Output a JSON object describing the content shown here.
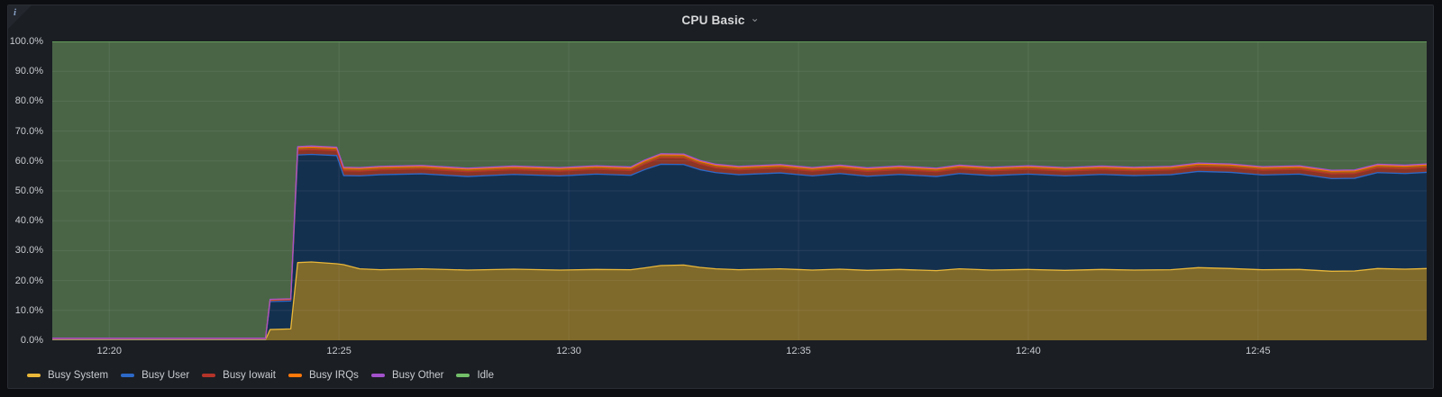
{
  "panel": {
    "title": "CPU Basic"
  },
  "icons": {
    "chevron_down_icon": "⌄",
    "info_icon": "i"
  },
  "colors": {
    "panel_bg": "#1b1e23",
    "page_bg": "#0d0e12",
    "grid": "rgba(255,255,255,0.07)",
    "tick_text": "#c8ccd1"
  },
  "chart_data": {
    "type": "area",
    "stacked": true,
    "title": "CPU Basic",
    "xlabel": "",
    "ylabel": "",
    "ylim": [
      0,
      100
    ],
    "grid": true,
    "legend_position": "bottom",
    "x_range_minutes": [
      18.76,
      48.67
    ],
    "y_ticks": [
      {
        "value": 100,
        "label": "100.0%"
      },
      {
        "value": 90,
        "label": "90.0%"
      },
      {
        "value": 80,
        "label": "80.0%"
      },
      {
        "value": 70,
        "label": "70.0%"
      },
      {
        "value": 60,
        "label": "60.0%"
      },
      {
        "value": 50,
        "label": "50.0%"
      },
      {
        "value": 40,
        "label": "40.0%"
      },
      {
        "value": 30,
        "label": "30.0%"
      },
      {
        "value": 20,
        "label": "20.0%"
      },
      {
        "value": 10,
        "label": "10.0%"
      },
      {
        "value": 0,
        "label": "0.0%"
      }
    ],
    "x_ticks": [
      {
        "minute": 20,
        "label": "12:20"
      },
      {
        "minute": 25,
        "label": "12:25"
      },
      {
        "minute": 30,
        "label": "12:30"
      },
      {
        "minute": 35,
        "label": "12:35"
      },
      {
        "minute": 40,
        "label": "12:40"
      },
      {
        "minute": 45,
        "label": "12:45"
      }
    ],
    "x_minutes": [
      18.76,
      23.4,
      23.5,
      23.95,
      24.1,
      24.4,
      24.95,
      25.1,
      25.45,
      25.9,
      26.8,
      27.8,
      28.8,
      29.8,
      30.6,
      31.35,
      31.65,
      32.0,
      32.5,
      32.85,
      33.2,
      33.7,
      34.6,
      35.3,
      35.9,
      36.5,
      37.2,
      38.0,
      38.5,
      39.2,
      40.0,
      40.8,
      41.6,
      42.3,
      43.1,
      43.7,
      44.4,
      45.1,
      45.9,
      46.6,
      47.1,
      47.6,
      48.2,
      48.67
    ],
    "series": [
      {
        "name": "Busy System",
        "line": "#EAB839",
        "fill": "#7f692b",
        "values": [
          0.2,
          0.2,
          3.6,
          3.8,
          26.0,
          26.2,
          25.6,
          25.3,
          23.9,
          23.6,
          23.9,
          23.5,
          23.8,
          23.5,
          23.7,
          23.6,
          24.2,
          25.0,
          25.2,
          24.4,
          23.9,
          23.6,
          23.9,
          23.5,
          23.8,
          23.4,
          23.7,
          23.3,
          23.9,
          23.5,
          23.7,
          23.4,
          23.7,
          23.5,
          23.6,
          24.3,
          24.0,
          23.6,
          23.7,
          23.1,
          23.2,
          24.0,
          23.8,
          24.0
        ]
      },
      {
        "name": "Busy User",
        "line": "#2d69c8",
        "fill": "#14304f",
        "values": [
          0.2,
          0.2,
          9.35,
          9.35,
          36.0,
          36.0,
          36.2,
          29.8,
          31.1,
          31.8,
          31.8,
          31.3,
          31.7,
          31.5,
          31.9,
          31.6,
          32.9,
          33.9,
          33.6,
          32.7,
          32.2,
          31.8,
          32.1,
          31.5,
          32.0,
          31.5,
          31.8,
          31.5,
          31.9,
          31.6,
          31.9,
          31.6,
          31.8,
          31.6,
          31.8,
          32.2,
          32.2,
          31.7,
          31.9,
          31.0,
          31.0,
          32.1,
          32.0,
          32.2
        ]
      },
      {
        "name": "Busy Iowait",
        "line": "#b5342a",
        "fill": "#8a3526",
        "values": [
          0.15,
          0.15,
          0.4,
          0.4,
          1.6,
          1.6,
          1.6,
          1.6,
          1.6,
          1.6,
          1.6,
          1.6,
          1.6,
          1.6,
          1.6,
          1.6,
          1.9,
          2.2,
          2.2,
          1.9,
          1.6,
          1.6,
          1.6,
          1.6,
          1.6,
          1.6,
          1.6,
          1.6,
          1.6,
          1.6,
          1.6,
          1.6,
          1.6,
          1.6,
          1.6,
          1.6,
          1.6,
          1.6,
          1.6,
          1.6,
          1.6,
          1.6,
          1.6,
          1.6
        ]
      },
      {
        "name": "Busy IRQs",
        "line": "#FF780A",
        "fill": "#a85c14",
        "values": [
          0.1,
          0.1,
          0.25,
          0.25,
          0.9,
          0.9,
          0.9,
          0.9,
          0.9,
          0.9,
          0.9,
          0.9,
          0.9,
          0.9,
          0.9,
          0.9,
          1.0,
          1.0,
          1.0,
          0.9,
          0.9,
          0.9,
          0.9,
          0.9,
          0.9,
          0.9,
          0.9,
          0.9,
          0.9,
          0.9,
          0.9,
          0.9,
          0.9,
          0.9,
          0.9,
          0.9,
          0.9,
          0.9,
          0.9,
          0.9,
          0.9,
          0.9,
          0.9,
          0.9
        ]
      },
      {
        "name": "Busy Other",
        "line": "#A352CC",
        "fill": "#6f4391",
        "values": [
          0.05,
          0.05,
          0.1,
          0.1,
          0.3,
          0.3,
          0.3,
          0.3,
          0.3,
          0.3,
          0.3,
          0.3,
          0.3,
          0.3,
          0.3,
          0.3,
          0.3,
          0.3,
          0.3,
          0.3,
          0.3,
          0.3,
          0.3,
          0.3,
          0.3,
          0.3,
          0.3,
          0.3,
          0.3,
          0.3,
          0.3,
          0.3,
          0.3,
          0.3,
          0.3,
          0.3,
          0.3,
          0.3,
          0.3,
          0.3,
          0.3,
          0.3,
          0.3,
          0.3
        ]
      },
      {
        "name": "Idle",
        "line": "#73BF69",
        "fill": "#4a6546",
        "values": [
          99.3,
          99.3,
          86.3,
          86.1,
          35.2,
          35.0,
          35.4,
          42.1,
          42.2,
          41.8,
          41.5,
          42.4,
          41.7,
          42.2,
          41.6,
          42.0,
          39.7,
          37.6,
          37.7,
          39.8,
          41.1,
          41.8,
          41.2,
          42.2,
          41.4,
          42.3,
          41.7,
          42.4,
          41.4,
          42.1,
          41.6,
          42.2,
          41.7,
          42.1,
          41.8,
          40.7,
          41.0,
          41.9,
          41.6,
          43.1,
          43.0,
          41.1,
          41.4,
          41.0
        ]
      }
    ]
  }
}
